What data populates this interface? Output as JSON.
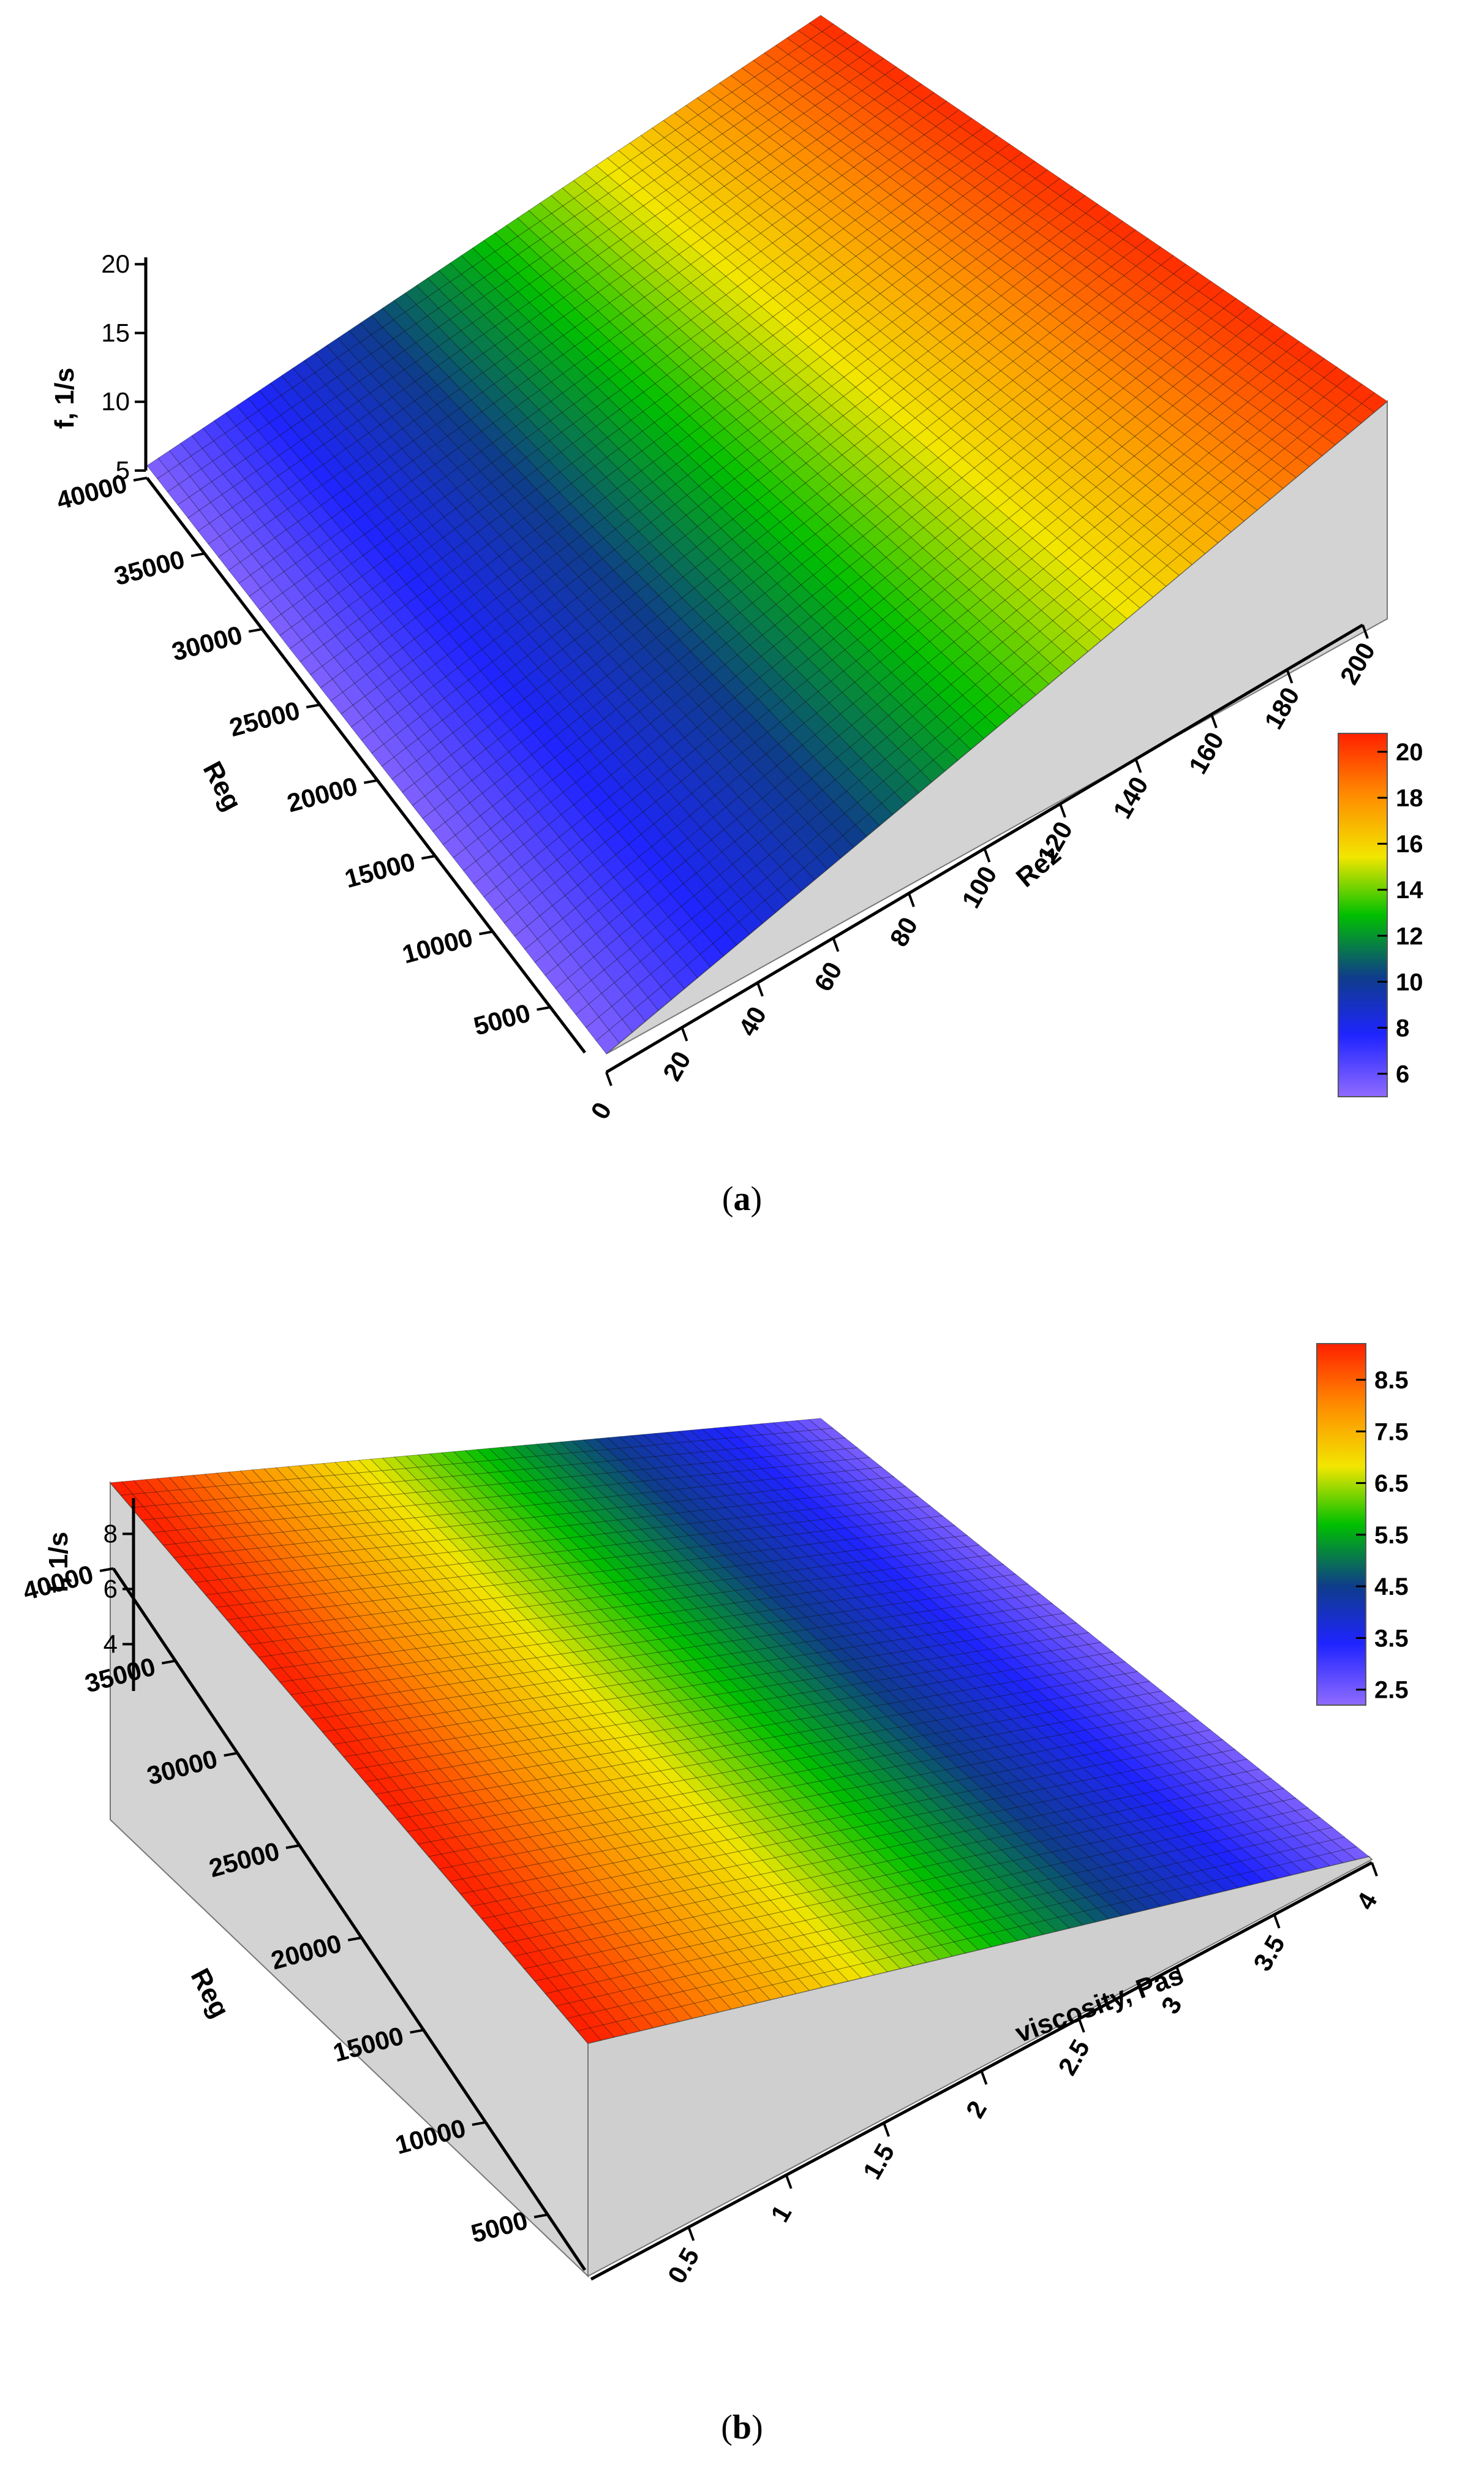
{
  "captions": {
    "a_open": "(",
    "a_letter": "a",
    "a_close": ")",
    "b_open": "(",
    "b_letter": "b",
    "b_close": ")"
  },
  "chart_data": [
    {
      "panel": "a",
      "type": "surface",
      "xlabel": "Rez",
      "ylabel": "Reg",
      "zlabel": "f, 1/s",
      "x_ticks": [
        0,
        20,
        40,
        60,
        80,
        100,
        120,
        140,
        160,
        180,
        200
      ],
      "y_ticks": [
        5000,
        10000,
        15000,
        20000,
        25000,
        30000,
        35000,
        40000
      ],
      "z_ticks": [
        5,
        10,
        15,
        20
      ],
      "xlim": [
        0,
        200
      ],
      "ylim": [
        2000,
        40000
      ],
      "zlim": [
        5,
        20.5
      ],
      "surface": {
        "description_rule": "f depends only on Rez, linear",
        "x": [
          0,
          200
        ],
        "f": [
          5.3,
          20.5
        ]
      },
      "colorbar": {
        "ticks": [
          6,
          8,
          10,
          12,
          14,
          16,
          18,
          20
        ],
        "range": [
          5,
          20.8
        ],
        "colors": [
          "#8f6bff",
          "#1f24ff",
          "#0e3d8a",
          "#00c000",
          "#f2e600",
          "#ff8c00",
          "#ff2000"
        ]
      },
      "grid": true
    },
    {
      "panel": "b",
      "type": "surface",
      "xlabel": "viscosity, Pas",
      "ylabel": "Reg",
      "zlabel": "f, 1/s",
      "x_ticks": [
        0.5,
        1,
        1.5,
        2,
        2.5,
        3,
        3.5,
        4
      ],
      "y_ticks": [
        5000,
        10000,
        15000,
        20000,
        25000,
        30000,
        35000,
        40000
      ],
      "z_ticks": [
        4,
        6,
        8
      ],
      "xlim": [
        0,
        4
      ],
      "ylim": [
        2000,
        40000
      ],
      "zlim": [
        2.3,
        9.3
      ],
      "surface": {
        "description_rule": "f depends only on viscosity, linear decreasing",
        "x": [
          0,
          4
        ],
        "f": [
          9.3,
          2.4
        ]
      },
      "colorbar": {
        "ticks": [
          2.5,
          3.5,
          4.5,
          5.5,
          6.5,
          7.5,
          8.5
        ],
        "range": [
          2.2,
          9.2
        ],
        "colors": [
          "#8f6bff",
          "#1f24ff",
          "#0e3d8a",
          "#00c000",
          "#f2e600",
          "#ff8c00",
          "#ff2000"
        ]
      },
      "grid": true
    }
  ]
}
